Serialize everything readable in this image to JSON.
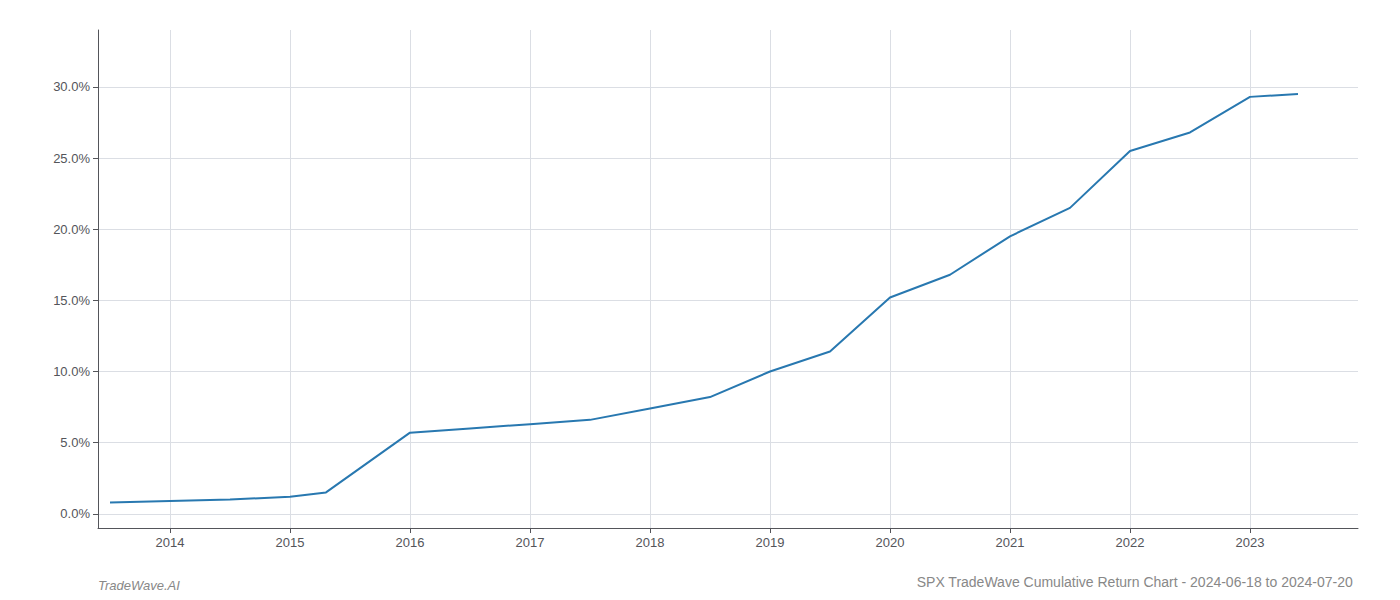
{
  "chart_data": {
    "type": "line",
    "title": "SPX TradeWave Cumulative Return Chart - 2024-06-18 to 2024-07-20",
    "annotations": [
      "TradeWave.AI"
    ],
    "x": [
      2013.5,
      2014.0,
      2014.5,
      2015.0,
      2015.3,
      2016.0,
      2016.5,
      2017.0,
      2017.5,
      2018.0,
      2018.5,
      2019.0,
      2019.5,
      2020.0,
      2020.5,
      2021.0,
      2021.5,
      2022.0,
      2022.5,
      2023.0,
      2023.4
    ],
    "values": [
      0.008,
      0.009,
      0.01,
      0.012,
      0.015,
      0.057,
      0.06,
      0.063,
      0.066,
      0.074,
      0.082,
      0.1,
      0.114,
      0.152,
      0.168,
      0.195,
      0.215,
      0.255,
      0.268,
      0.293,
      0.295
    ],
    "color": "#2878b0",
    "xlim": [
      2013.4,
      2023.9
    ],
    "xticks": [
      2014,
      2015,
      2016,
      2017,
      2018,
      2019,
      2020,
      2021,
      2022,
      2023
    ],
    "ylim": [
      -0.01,
      0.34
    ],
    "yticks": [
      {
        "value": 0.0,
        "label": "0.0%"
      },
      {
        "value": 0.05,
        "label": "5.0%"
      },
      {
        "value": 0.1,
        "label": "10.0%"
      },
      {
        "value": 0.15,
        "label": "15.0%"
      },
      {
        "value": 0.2,
        "label": "20.0%"
      },
      {
        "value": 0.25,
        "label": "25.0%"
      },
      {
        "value": 0.3,
        "label": "30.0%"
      }
    ],
    "grid": true
  }
}
